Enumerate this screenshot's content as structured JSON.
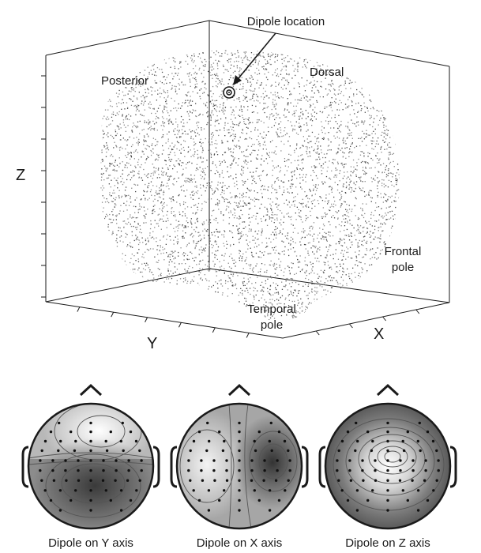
{
  "figure": {
    "axes": {
      "z": "Z",
      "y": "Y",
      "x": "X"
    },
    "labels": {
      "dipole_location": "Dipole location",
      "posterior": "Posterior",
      "dorsal": "Dorsal",
      "frontal_pole_line1": "Frontal",
      "frontal_pole_line2": "pole",
      "temporal_pole_line1": "Temporal",
      "temporal_pole_line2": "pole"
    },
    "topomaps": [
      {
        "caption": "Dipole on Y axis"
      },
      {
        "caption": "Dipole on X axis"
      },
      {
        "caption": "Dipole on Z axis"
      }
    ]
  },
  "colors": {
    "ink": "#1a1a1a",
    "dots": "#6e6e6e",
    "contour": "#555555"
  }
}
